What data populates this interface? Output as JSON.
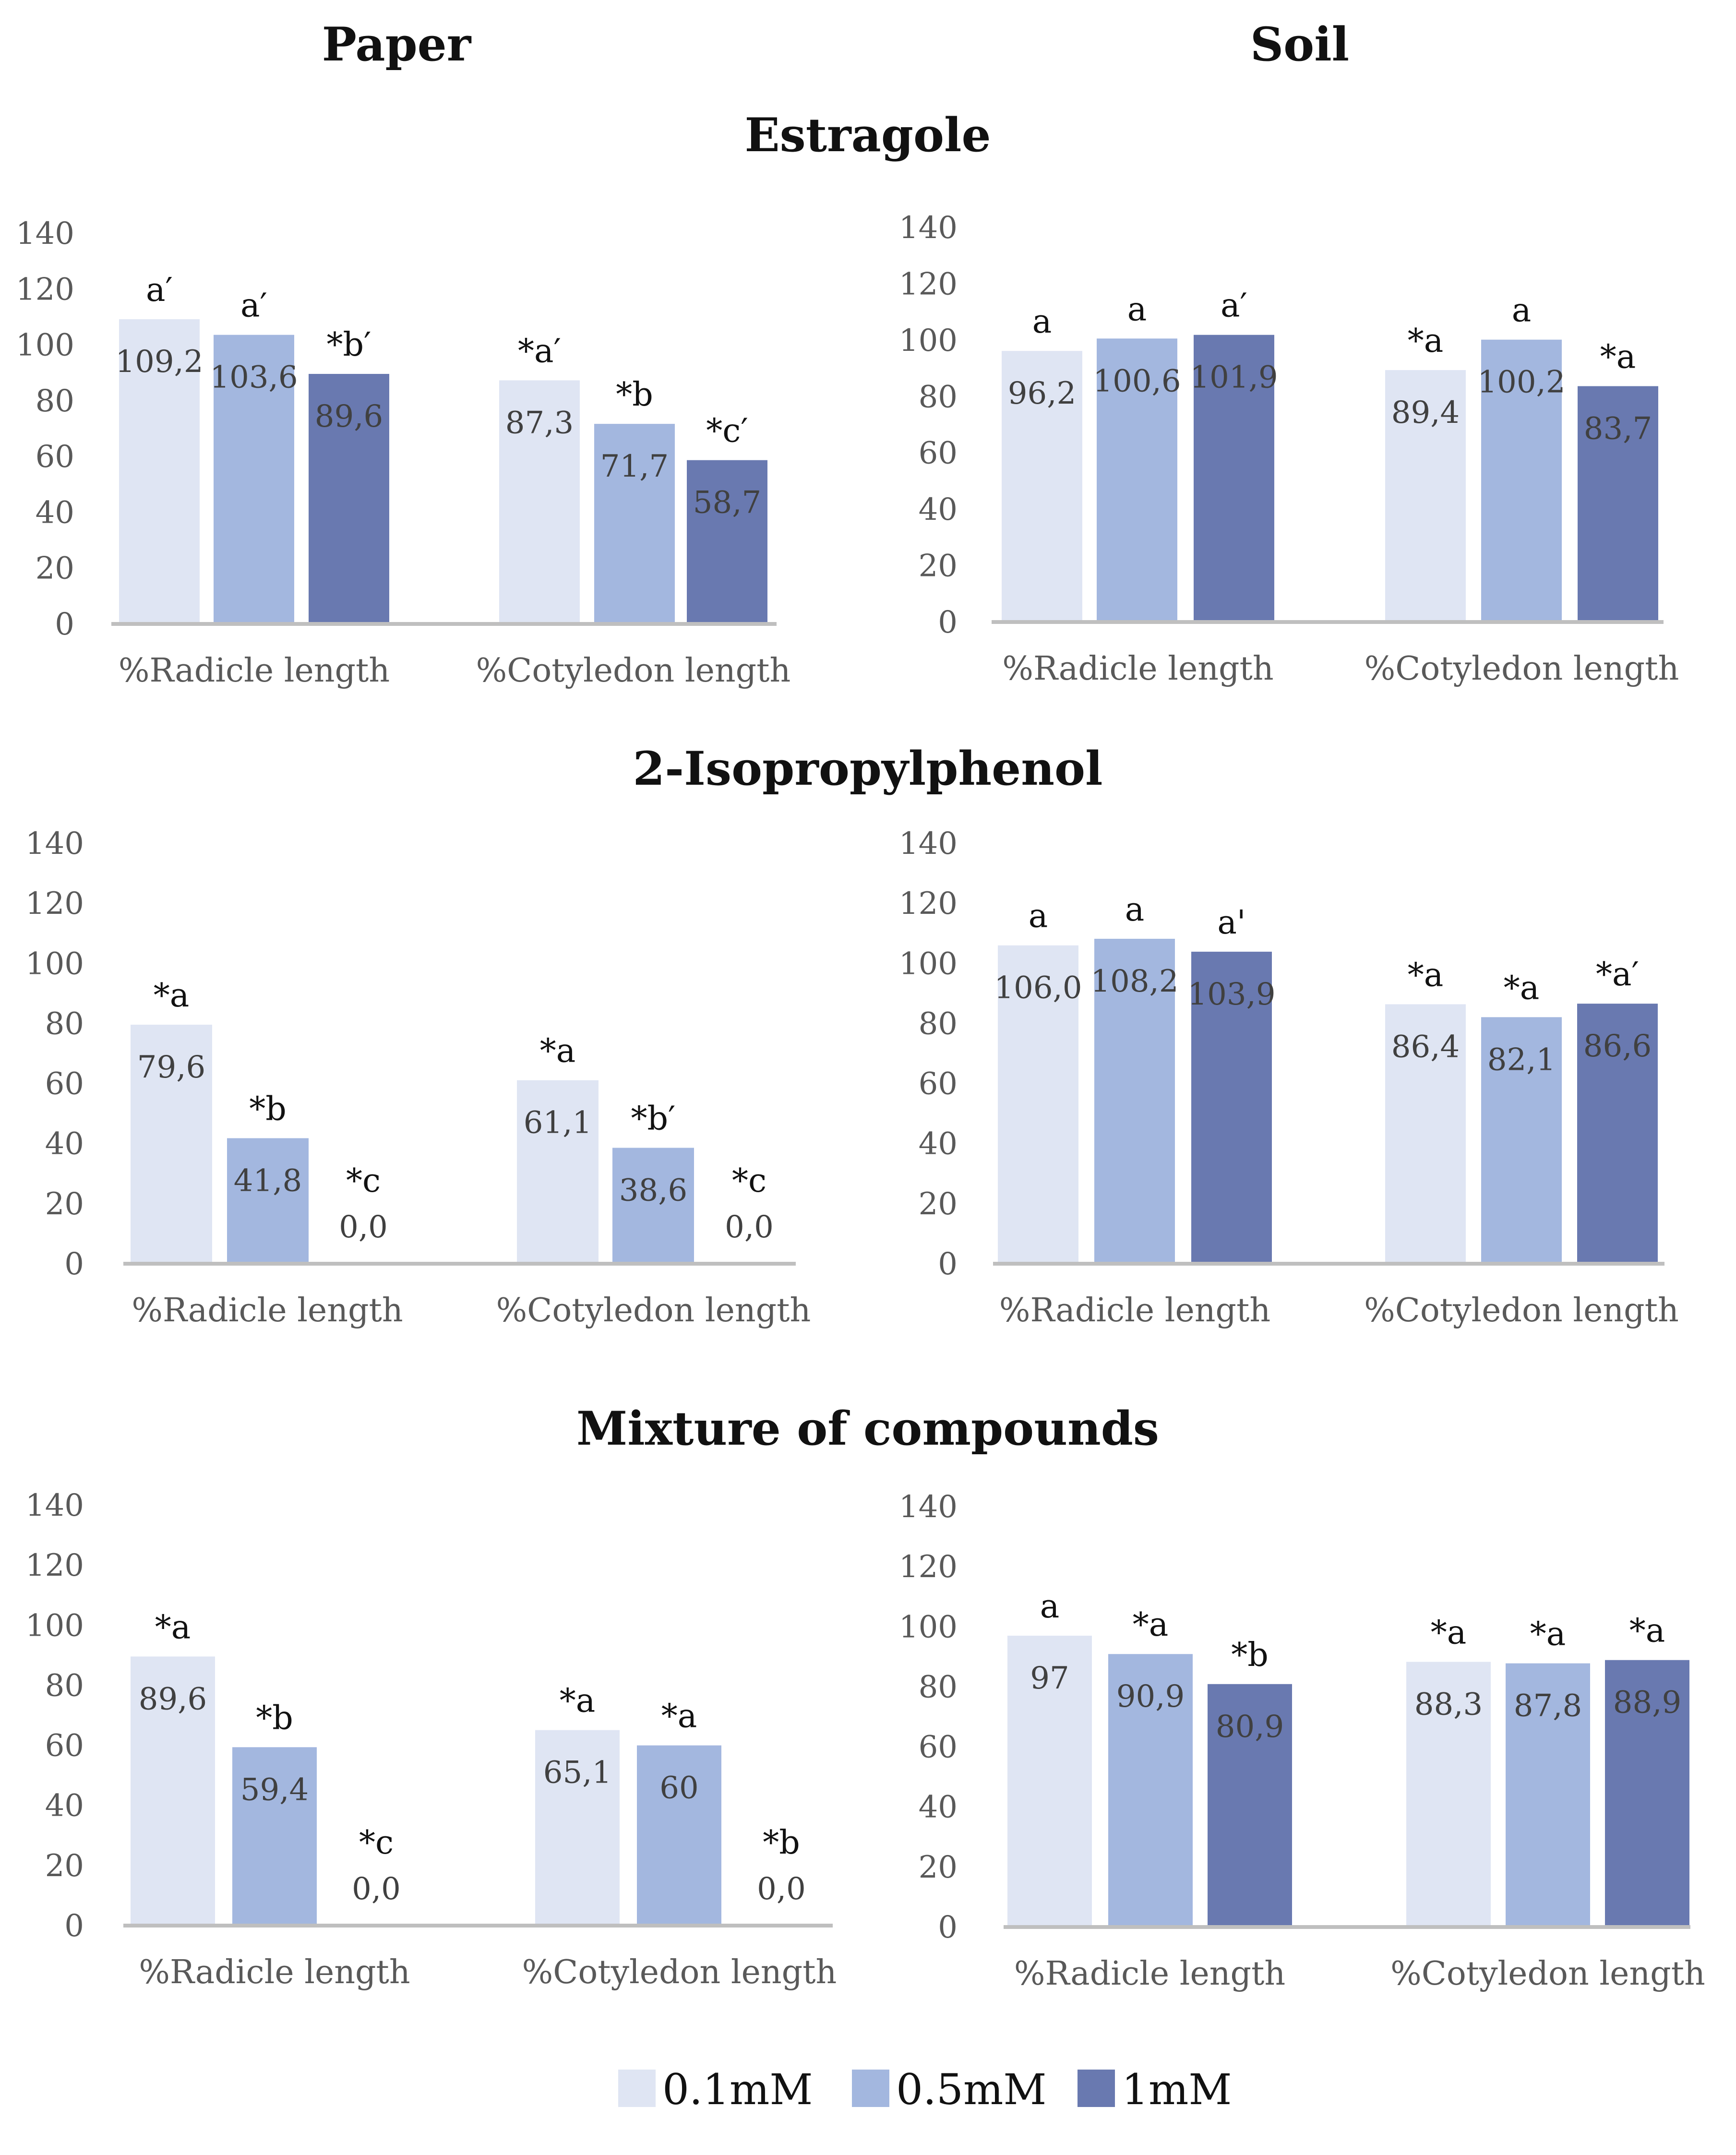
{
  "column_titles": [
    "Paper",
    "Soil"
  ],
  "row_titles": [
    "Estragole",
    "2-Isopropylphenol",
    "Mixture of compounds"
  ],
  "series_names": [
    "0.1mM",
    "0.5mM",
    "1mM"
  ],
  "colors": {
    "s0": "#dfe5f3",
    "s1": "#a3b7df",
    "s2": "#6979b0"
  },
  "chart_data": [
    {
      "type": "bar",
      "panel": "Estragole - Paper",
      "substrate": "Paper",
      "compound": "Estragole",
      "categories": [
        "%Radicle length",
        "%Cotyledon length"
      ],
      "yticks": [
        "0",
        "20",
        "40",
        "60",
        "80",
        "100",
        "120",
        "140"
      ],
      "ylim": [
        0,
        140
      ],
      "series": [
        {
          "name": "0.1mM",
          "values": [
            109.2,
            87.3
          ],
          "labels": [
            "109,2",
            "87,3"
          ],
          "letters": [
            "a′",
            "*a′"
          ]
        },
        {
          "name": "0.5mM",
          "values": [
            103.6,
            71.7
          ],
          "labels": [
            "103,6",
            "71,7"
          ],
          "letters": [
            "a′",
            "*b"
          ]
        },
        {
          "name": "1mM",
          "values": [
            89.6,
            58.7
          ],
          "labels": [
            "89,6",
            "58,7"
          ],
          "letters": [
            "*b′",
            "*c′"
          ]
        }
      ]
    },
    {
      "type": "bar",
      "panel": "Estragole - Soil",
      "substrate": "Soil",
      "compound": "Estragole",
      "categories": [
        "%Radicle length",
        "%Cotyledon length"
      ],
      "yticks": [
        "0",
        "20",
        "40",
        "60",
        "80",
        "100",
        "120",
        "140"
      ],
      "ylim": [
        0,
        140
      ],
      "series": [
        {
          "name": "0.1mM",
          "values": [
            96.2,
            89.4
          ],
          "labels": [
            "96,2",
            "89,4"
          ],
          "letters": [
            "a",
            "*a"
          ]
        },
        {
          "name": "0.5mM",
          "values": [
            100.6,
            100.2
          ],
          "labels": [
            "100,6",
            "100,2"
          ],
          "letters": [
            "a",
            "a"
          ]
        },
        {
          "name": "1mM",
          "values": [
            101.9,
            83.7
          ],
          "labels": [
            "101,9",
            "83,7"
          ],
          "letters": [
            "a′",
            "*a"
          ]
        }
      ]
    },
    {
      "type": "bar",
      "panel": "2-Isopropylphenol - Paper",
      "substrate": "Paper",
      "compound": "2-Isopropylphenol",
      "categories": [
        "%Radicle length",
        "%Cotyledon length"
      ],
      "yticks": [
        "0",
        "20",
        "40",
        "60",
        "80",
        "100",
        "120",
        "140"
      ],
      "ylim": [
        0,
        140
      ],
      "series": [
        {
          "name": "0.1mM",
          "values": [
            79.6,
            61.1
          ],
          "labels": [
            "79,6",
            "61,1"
          ],
          "letters": [
            "*a",
            "*a"
          ]
        },
        {
          "name": "0.5mM",
          "values": [
            41.8,
            38.6
          ],
          "labels": [
            "41,8",
            "38,6"
          ],
          "letters": [
            "*b",
            "*b′"
          ]
        },
        {
          "name": "1mM",
          "values": [
            0.0,
            0.0
          ],
          "labels": [
            "0,0",
            "0,0"
          ],
          "letters": [
            "*c",
            "*c"
          ]
        }
      ]
    },
    {
      "type": "bar",
      "panel": "2-Isopropylphenol - Soil",
      "substrate": "Soil",
      "compound": "2-Isopropylphenol",
      "categories": [
        "%Radicle length",
        "%Cotyledon length"
      ],
      "yticks": [
        "0",
        "20",
        "40",
        "60",
        "80",
        "100",
        "120",
        "140"
      ],
      "ylim": [
        0,
        140
      ],
      "series": [
        {
          "name": "0.1mM",
          "values": [
            106.0,
            86.4
          ],
          "labels": [
            "106,0",
            "86,4"
          ],
          "letters": [
            "a",
            "*a"
          ]
        },
        {
          "name": "0.5mM",
          "values": [
            108.2,
            82.1
          ],
          "labels": [
            "108,2",
            "82,1"
          ],
          "letters": [
            "a",
            "*a"
          ]
        },
        {
          "name": "1mM",
          "values": [
            103.9,
            86.6
          ],
          "labels": [
            "103,9",
            "86,6"
          ],
          "letters": [
            "a'",
            "*a′"
          ]
        }
      ]
    },
    {
      "type": "bar",
      "panel": "Mixture of compounds - Paper",
      "substrate": "Paper",
      "compound": "Mixture of compounds",
      "categories": [
        "%Radicle length",
        "%Cotyledon length"
      ],
      "yticks": [
        "0",
        "20",
        "40",
        "60",
        "80",
        "100",
        "120",
        "140"
      ],
      "ylim": [
        0,
        140
      ],
      "series": [
        {
          "name": "0.1mM",
          "values": [
            89.6,
            65.1
          ],
          "labels": [
            "89,6",
            "65,1"
          ],
          "letters": [
            "*a",
            "*a"
          ]
        },
        {
          "name": "0.5mM",
          "values": [
            59.4,
            60.0
          ],
          "labels": [
            "59,4",
            "60"
          ],
          "letters": [
            "*b",
            "*a"
          ]
        },
        {
          "name": "1mM",
          "values": [
            0.0,
            0.0
          ],
          "labels": [
            "0,0",
            "0,0"
          ],
          "letters": [
            "*c",
            "*b"
          ]
        }
      ]
    },
    {
      "type": "bar",
      "panel": "Mixture of compounds - Soil",
      "substrate": "Soil",
      "compound": "Mixture of compounds",
      "categories": [
        "%Radicle length",
        "%Cotyledon length"
      ],
      "yticks": [
        "0",
        "20",
        "40",
        "60",
        "80",
        "100",
        "120",
        "140"
      ],
      "ylim": [
        0,
        140
      ],
      "series": [
        {
          "name": "0.1mM",
          "values": [
            97,
            88.3
          ],
          "labels": [
            "97",
            "88,3"
          ],
          "letters": [
            "a",
            "*a"
          ]
        },
        {
          "name": "0.5mM",
          "values": [
            90.9,
            87.8
          ],
          "labels": [
            "90,9",
            "87,8"
          ],
          "letters": [
            "*a",
            "*a"
          ]
        },
        {
          "name": "1mM",
          "values": [
            80.9,
            88.9
          ],
          "labels": [
            "80,9",
            "88,9"
          ],
          "letters": [
            "*b",
            "*a"
          ]
        }
      ]
    }
  ]
}
